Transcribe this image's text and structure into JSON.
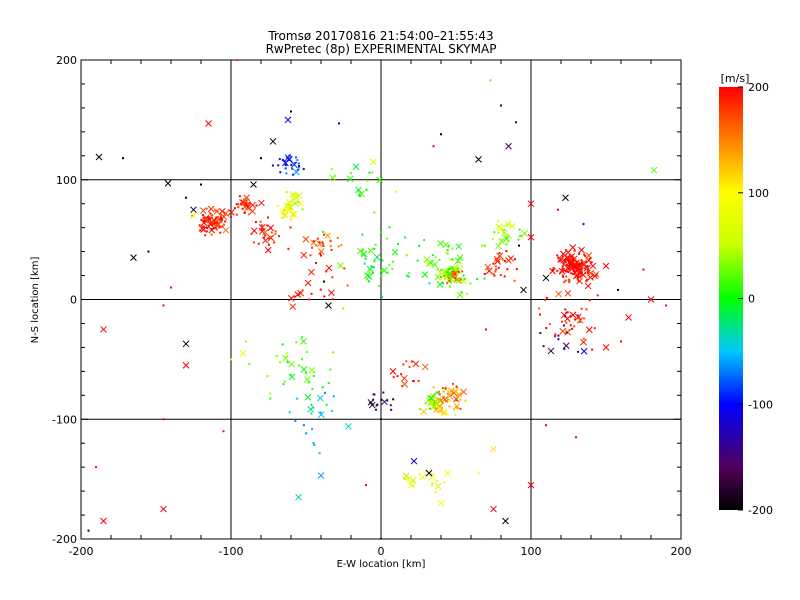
{
  "chart_data": {
    "type": "scatter",
    "title": "Tromsø 20170816 21:54:00–21:55:43",
    "subtitle": "RwPretec (8p) EXPERIMENTAL SKYMAP",
    "xlabel": "E-W location [km]",
    "ylabel": "N-S location [km]",
    "xlim": [
      -200,
      200
    ],
    "ylim": [
      -200,
      200
    ],
    "xticks": [
      "-200",
      "-100",
      "0",
      "100",
      "200"
    ],
    "yticks": [
      "-200",
      "-100",
      "0",
      "100",
      "200"
    ],
    "grid": "major lines at ±100 and 0",
    "colorbar": {
      "label": "[m/s]",
      "range": [
        -200,
        200
      ],
      "ticks": [
        "200",
        "100",
        "0",
        "-100",
        "-200"
      ],
      "colormap": "rainbow (black-purple-blue-cyan-green-yellow-orange-red)"
    },
    "marker_types": [
      "dot",
      "x"
    ],
    "series_note": "Each point: x = E-W [km], y = N-S [km], v = velocity [m/s]; marker 'x' or 'dot'",
    "clusters": [
      {
        "x": -112,
        "y": 65,
        "spread": 10,
        "v": 190,
        "n": 80
      },
      {
        "x": -90,
        "y": 78,
        "spread": 8,
        "v": 185,
        "n": 30
      },
      {
        "x": -60,
        "y": 112,
        "spread": 8,
        "v": -90,
        "n": 30
      },
      {
        "x": -58,
        "y": 82,
        "spread": 8,
        "v": 60,
        "n": 25
      },
      {
        "x": -62,
        "y": 72,
        "spread": 5,
        "v": 90,
        "n": 20
      },
      {
        "x": -75,
        "y": 55,
        "spread": 12,
        "v": 190,
        "n": 30
      },
      {
        "x": -40,
        "y": 45,
        "spread": 12,
        "v": 170,
        "n": 25
      },
      {
        "x": 45,
        "y": 22,
        "spread": 7,
        "v": 40,
        "n": 60
      },
      {
        "x": 45,
        "y": 28,
        "spread": 20,
        "v": 20,
        "n": 50
      },
      {
        "x": 48,
        "y": 20,
        "spread": 6,
        "v": 170,
        "n": 20
      },
      {
        "x": 130,
        "y": 27,
        "spread": 12,
        "v": 200,
        "n": 140
      },
      {
        "x": 125,
        "y": -15,
        "spread": 20,
        "v": 195,
        "n": 40
      },
      {
        "x": 45,
        "y": -80,
        "spread": 10,
        "v": 150,
        "n": 45
      },
      {
        "x": 40,
        "y": -90,
        "spread": 8,
        "v": 110,
        "n": 30
      },
      {
        "x": 35,
        "y": -85,
        "spread": 8,
        "v": 20,
        "n": 20
      },
      {
        "x": 20,
        "y": -60,
        "spread": 10,
        "v": 195,
        "n": 15
      },
      {
        "x": 85,
        "y": 55,
        "spread": 10,
        "v": 40,
        "n": 25
      },
      {
        "x": 80,
        "y": 28,
        "spread": 12,
        "v": 190,
        "n": 25
      },
      {
        "x": 0,
        "y": 30,
        "spread": 30,
        "v": 0,
        "n": 50
      },
      {
        "x": -55,
        "y": -60,
        "spread": 25,
        "v": 20,
        "n": 35
      },
      {
        "x": -45,
        "y": -100,
        "spread": 25,
        "v": -40,
        "n": 20
      },
      {
        "x": 30,
        "y": -150,
        "spread": 15,
        "v": 70,
        "n": 20
      },
      {
        "x": -40,
        "y": 12,
        "spread": 20,
        "v": 195,
        "n": 20
      },
      {
        "x": 0,
        "y": -85,
        "spread": 8,
        "v": -170,
        "n": 15
      },
      {
        "x": 120,
        "y": -35,
        "spread": 20,
        "v": -140,
        "n": 12
      },
      {
        "x": -20,
        "y": 100,
        "spread": 20,
        "v": 10,
        "n": 15
      }
    ],
    "scatter_points": [
      {
        "x": -172,
        "y": 118,
        "v": -200
      },
      {
        "x": -188,
        "y": 119,
        "v": -200
      },
      {
        "x": -155,
        "y": 40,
        "v": -200
      },
      {
        "x": -165,
        "y": 35,
        "v": -200
      },
      {
        "x": -130,
        "y": 85,
        "v": -200
      },
      {
        "x": -142,
        "y": 97,
        "v": -200
      },
      {
        "x": -120,
        "y": 96,
        "v": -200
      },
      {
        "x": -125,
        "y": 75,
        "v": -200
      },
      {
        "x": -80,
        "y": 118,
        "v": -200
      },
      {
        "x": -85,
        "y": 96,
        "v": -200
      },
      {
        "x": -60,
        "y": 157,
        "v": -200
      },
      {
        "x": -72,
        "y": 132,
        "v": -200
      },
      {
        "x": 40,
        "y": 138,
        "v": -200
      },
      {
        "x": 65,
        "y": 117,
        "v": -200
      },
      {
        "x": 92,
        "y": 45,
        "v": -200
      },
      {
        "x": 95,
        "y": 8,
        "v": -200
      },
      {
        "x": 158,
        "y": 8,
        "v": -200
      },
      {
        "x": -130,
        "y": -37,
        "v": -200
      },
      {
        "x": 0,
        "y": -200,
        "v": -200
      },
      {
        "x": 83,
        "y": -185,
        "v": -200
      },
      {
        "x": -38,
        "y": 15,
        "v": -200
      },
      {
        "x": -35,
        "y": -5,
        "v": -200
      },
      {
        "x": 0,
        "y": -100,
        "v": -200
      },
      {
        "x": 32,
        "y": -145,
        "v": -200
      },
      {
        "x": -195,
        "y": -193,
        "v": -200
      },
      {
        "x": 123,
        "y": 85,
        "v": -200
      },
      {
        "x": 90,
        "y": 148,
        "v": -170
      },
      {
        "x": 85,
        "y": 128,
        "v": -170
      },
      {
        "x": 80,
        "y": 162,
        "v": -170
      },
      {
        "x": 110,
        "y": 18,
        "v": -200
      },
      {
        "x": -28,
        "y": 147,
        "v": -110
      },
      {
        "x": -62,
        "y": 150,
        "v": -110
      },
      {
        "x": 135,
        "y": 63,
        "v": -110
      },
      {
        "x": 22,
        "y": -135,
        "v": -120
      },
      {
        "x": -45,
        "y": -120,
        "v": -60
      },
      {
        "x": -40,
        "y": -147,
        "v": -60
      },
      {
        "x": 73,
        "y": 183,
        "v": 20
      },
      {
        "x": 182,
        "y": 108,
        "v": 20
      },
      {
        "x": 70,
        "y": -200,
        "v": -30
      },
      {
        "x": -55,
        "y": -165,
        "v": -40
      },
      {
        "x": -96,
        "y": 200,
        "v": 200
      },
      {
        "x": -115,
        "y": 147,
        "v": 200
      },
      {
        "x": -140,
        "y": 10,
        "v": 200
      },
      {
        "x": -185,
        "y": -25,
        "v": 200
      },
      {
        "x": -190,
        "y": -140,
        "v": 200
      },
      {
        "x": -185,
        "y": -185,
        "v": 200
      },
      {
        "x": -145,
        "y": -100,
        "v": 200
      },
      {
        "x": -145,
        "y": -175,
        "v": 200
      },
      {
        "x": -105,
        "y": -110,
        "v": 200
      },
      {
        "x": -130,
        "y": -55,
        "v": 200
      },
      {
        "x": -145,
        "y": -5,
        "v": 200
      },
      {
        "x": 180,
        "y": 0,
        "v": 200
      },
      {
        "x": 190,
        "y": -5,
        "v": 200
      },
      {
        "x": 165,
        "y": -15,
        "v": 200
      },
      {
        "x": 160,
        "y": -35,
        "v": 200
      },
      {
        "x": 150,
        "y": -40,
        "v": 200
      },
      {
        "x": 130,
        "y": -115,
        "v": 200
      },
      {
        "x": 100,
        "y": -155,
        "v": 200
      },
      {
        "x": 110,
        "y": -105,
        "v": 200
      },
      {
        "x": 75,
        "y": -175,
        "v": 200
      },
      {
        "x": 35,
        "y": 128,
        "v": 200
      },
      {
        "x": 150,
        "y": 28,
        "v": 200
      },
      {
        "x": 175,
        "y": 25,
        "v": 200
      },
      {
        "x": 100,
        "y": 80,
        "v": 200
      },
      {
        "x": 118,
        "y": 75,
        "v": 200
      },
      {
        "x": 100,
        "y": 52,
        "v": 200
      },
      {
        "x": 70,
        "y": -25,
        "v": 200
      },
      {
        "x": 8,
        "y": -60,
        "v": 200
      },
      {
        "x": -10,
        "y": -155,
        "v": 200
      },
      {
        "x": 40,
        "y": -170,
        "v": 90
      },
      {
        "x": 65,
        "y": -145,
        "v": 100
      },
      {
        "x": 75,
        "y": -125,
        "v": 110
      },
      {
        "x": 10,
        "y": 90,
        "v": 80
      },
      {
        "x": -5,
        "y": 115,
        "v": 70
      },
      {
        "x": -100,
        "y": -50,
        "v": 100
      },
      {
        "x": -92,
        "y": -45,
        "v": 80
      },
      {
        "x": -90,
        "y": -35,
        "v": 40
      },
      {
        "x": -125,
        "y": 70,
        "v": 90
      }
    ]
  }
}
